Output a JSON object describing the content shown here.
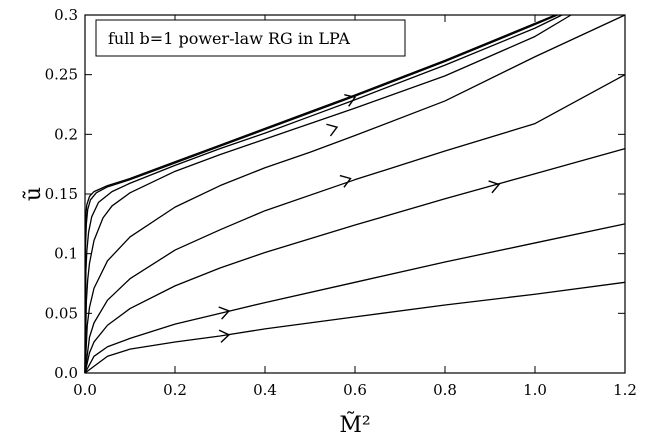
{
  "chart_data": {
    "type": "line",
    "title": "",
    "annotation": "full b=1 power-law RG in LPA",
    "xlabel": "M̃²",
    "ylabel": "ũ",
    "xlim": [
      0.0,
      1.2
    ],
    "ylim": [
      0.0,
      0.3
    ],
    "x_ticks": [
      "0.0",
      "0.2",
      "0.4",
      "0.6",
      "0.8",
      "1.0",
      "1.2"
    ],
    "y_ticks": [
      "0.0",
      "0.05",
      "0.1",
      "0.15",
      "0.2",
      "0.25",
      "0.3"
    ],
    "grid": false,
    "series": [
      {
        "points": [
          [
            0,
            0
          ],
          [
            0.05,
            0.014
          ],
          [
            0.1,
            0.02
          ],
          [
            0.2,
            0.026
          ],
          [
            0.3,
            0.031
          ],
          [
            0.4,
            0.037
          ],
          [
            0.6,
            0.047
          ],
          [
            0.8,
            0.057
          ],
          [
            1.0,
            0.066
          ],
          [
            1.2,
            0.076
          ]
        ]
      },
      {
        "points": [
          [
            0,
            0
          ],
          [
            0.02,
            0.014
          ],
          [
            0.05,
            0.022
          ],
          [
            0.1,
            0.029
          ],
          [
            0.2,
            0.041
          ],
          [
            0.3,
            0.05
          ],
          [
            0.4,
            0.059
          ],
          [
            0.6,
            0.076
          ],
          [
            0.8,
            0.093
          ],
          [
            1.0,
            0.109
          ],
          [
            1.2,
            0.125
          ]
        ]
      },
      {
        "points": [
          [
            0,
            0
          ],
          [
            0.01,
            0.017
          ],
          [
            0.02,
            0.026
          ],
          [
            0.05,
            0.04
          ],
          [
            0.1,
            0.054
          ],
          [
            0.2,
            0.073
          ],
          [
            0.3,
            0.088
          ],
          [
            0.4,
            0.101
          ],
          [
            0.6,
            0.124
          ],
          [
            0.8,
            0.146
          ],
          [
            1.0,
            0.167
          ],
          [
            1.2,
            0.188
          ]
        ]
      },
      {
        "points": [
          [
            0,
            0
          ],
          [
            0.01,
            0.03
          ],
          [
            0.02,
            0.042
          ],
          [
            0.05,
            0.061
          ],
          [
            0.1,
            0.079
          ],
          [
            0.2,
            0.103
          ],
          [
            0.3,
            0.12
          ],
          [
            0.4,
            0.136
          ],
          [
            0.6,
            0.162
          ],
          [
            0.8,
            0.186
          ],
          [
            1.0,
            0.209
          ],
          [
            1.2,
            0.25
          ]
        ]
      },
      {
        "points": [
          [
            0,
            0
          ],
          [
            0.005,
            0.04
          ],
          [
            0.01,
            0.055
          ],
          [
            0.02,
            0.071
          ],
          [
            0.05,
            0.094
          ],
          [
            0.1,
            0.114
          ],
          [
            0.2,
            0.139
          ],
          [
            0.3,
            0.157
          ],
          [
            0.4,
            0.172
          ],
          [
            0.5,
            0.185
          ],
          [
            0.6,
            0.199
          ],
          [
            0.8,
            0.228
          ],
          [
            1.0,
            0.265
          ],
          [
            1.2,
            0.3
          ]
        ]
      },
      {
        "points": [
          [
            0,
            0
          ],
          [
            0.003,
            0.06
          ],
          [
            0.006,
            0.078
          ],
          [
            0.01,
            0.092
          ],
          [
            0.02,
            0.111
          ],
          [
            0.04,
            0.13
          ],
          [
            0.06,
            0.14
          ],
          [
            0.1,
            0.151
          ],
          [
            0.2,
            0.169
          ],
          [
            0.3,
            0.183
          ],
          [
            0.4,
            0.196
          ],
          [
            0.5,
            0.209
          ],
          [
            0.6,
            0.222
          ],
          [
            0.8,
            0.249
          ],
          [
            1.0,
            0.282
          ],
          [
            1.08,
            0.3
          ]
        ]
      },
      {
        "points": [
          [
            0,
            0
          ],
          [
            0.002,
            0.085
          ],
          [
            0.004,
            0.102
          ],
          [
            0.008,
            0.118
          ],
          [
            0.015,
            0.131
          ],
          [
            0.03,
            0.143
          ],
          [
            0.06,
            0.152
          ],
          [
            0.1,
            0.159
          ],
          [
            0.2,
            0.174
          ],
          [
            0.3,
            0.188
          ],
          [
            0.4,
            0.201
          ],
          [
            0.5,
            0.215
          ],
          [
            0.6,
            0.229
          ],
          [
            0.8,
            0.258
          ],
          [
            1.0,
            0.289
          ],
          [
            1.06,
            0.3
          ]
        ]
      },
      {
        "points": [
          [
            0,
            0
          ],
          [
            0.001,
            0.105
          ],
          [
            0.003,
            0.125
          ],
          [
            0.006,
            0.137
          ],
          [
            0.012,
            0.145
          ],
          [
            0.025,
            0.151
          ],
          [
            0.05,
            0.156
          ],
          [
            0.1,
            0.162
          ],
          [
            0.2,
            0.176
          ],
          [
            0.3,
            0.19
          ],
          [
            0.4,
            0.204
          ],
          [
            0.5,
            0.218
          ],
          [
            0.6,
            0.232
          ],
          [
            0.8,
            0.261
          ],
          [
            1.0,
            0.292
          ],
          [
            1.05,
            0.3
          ]
        ]
      },
      {
        "points": [
          [
            0,
            0
          ],
          [
            0.001,
            0.12
          ],
          [
            0.002,
            0.133
          ],
          [
            0.004,
            0.141
          ],
          [
            0.01,
            0.148
          ],
          [
            0.02,
            0.152
          ],
          [
            0.05,
            0.157
          ],
          [
            0.1,
            0.163
          ],
          [
            0.2,
            0.177
          ],
          [
            0.3,
            0.191
          ],
          [
            0.4,
            0.205
          ],
          [
            0.5,
            0.219
          ],
          [
            0.6,
            0.233
          ],
          [
            0.8,
            0.262
          ],
          [
            1.0,
            0.293
          ],
          [
            1.045,
            0.3
          ]
        ]
      }
    ],
    "arrows": [
      {
        "x": 0.32,
        "y": 0.032
      },
      {
        "x": 0.32,
        "y": 0.052
      },
      {
        "x": 0.92,
        "y": 0.158
      },
      {
        "x": 0.59,
        "y": 0.163
      },
      {
        "x": 0.56,
        "y": 0.206
      },
      {
        "x": 0.6,
        "y": 0.231
      }
    ]
  }
}
